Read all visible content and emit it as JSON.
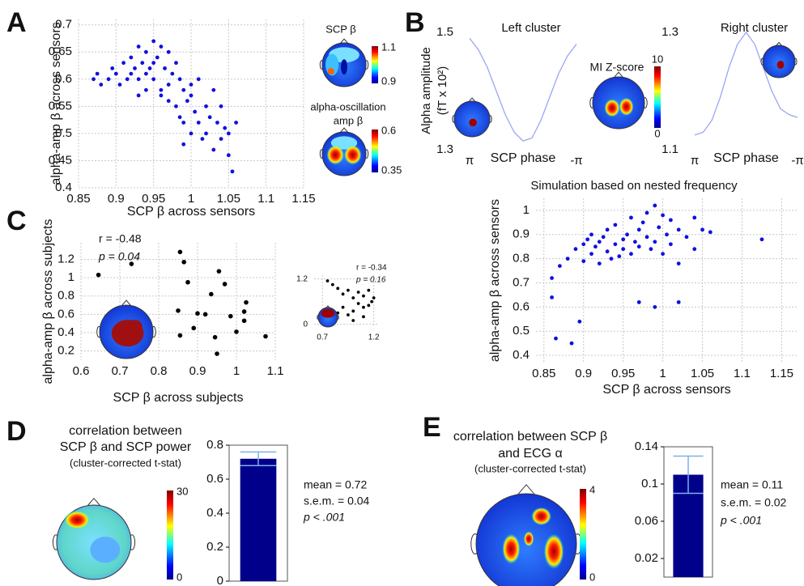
{
  "chart_data": [
    {
      "panel": "A",
      "type": "scatter",
      "xlabel": "SCP β across sensors",
      "ylabel": "alpha-amp β across sensors",
      "color": "#1010e0",
      "grid": true,
      "xlim": [
        0.85,
        1.15
      ],
      "xticks": [
        0.85,
        0.9,
        0.95,
        1,
        1.05,
        1.1,
        1.15
      ],
      "ylim": [
        0.4,
        0.71
      ],
      "yticks": [
        0.7,
        0.65,
        0.6,
        0.55,
        0.5,
        0.45,
        0.4
      ],
      "x": [
        0.87,
        0.875,
        0.88,
        0.89,
        0.895,
        0.9,
        0.905,
        0.91,
        0.915,
        0.92,
        0.92,
        0.925,
        0.93,
        0.93,
        0.935,
        0.94,
        0.94,
        0.945,
        0.95,
        0.95,
        0.955,
        0.96,
        0.96,
        0.965,
        0.97,
        0.97,
        0.975,
        0.98,
        0.98,
        0.985,
        0.99,
        0.99,
        0.995,
        1,
        1,
        1.005,
        1.01,
        1.01,
        1.015,
        1.02,
        1.02,
        1.025,
        1.03,
        1.03,
        1.035,
        1.04,
        1.04,
        1.045,
        1.05,
        1.05,
        1.055,
        1.06,
        0.96,
        0.95,
        0.94,
        0.99,
        1,
        0.93,
        0.97,
        0.985
      ],
      "y": [
        0.6,
        0.61,
        0.59,
        0.6,
        0.62,
        0.61,
        0.59,
        0.63,
        0.6,
        0.64,
        0.61,
        0.62,
        0.66,
        0.6,
        0.63,
        0.65,
        0.61,
        0.62,
        0.67,
        0.6,
        0.64,
        0.66,
        0.58,
        0.62,
        0.65,
        0.59,
        0.61,
        0.63,
        0.55,
        0.6,
        0.58,
        0.52,
        0.56,
        0.57,
        0.5,
        0.54,
        0.6,
        0.52,
        0.49,
        0.55,
        0.5,
        0.53,
        0.58,
        0.47,
        0.52,
        0.55,
        0.49,
        0.51,
        0.5,
        0.46,
        0.43,
        0.52,
        0.57,
        0.63,
        0.58,
        0.48,
        0.59,
        0.57,
        0.56,
        0.53
      ],
      "insets": [
        {
          "title_lines": [
            "SCP β"
          ],
          "cbar_ticks": [
            1.1,
            0.9
          ]
        },
        {
          "title_lines": [
            "alpha-oscillation",
            "amp β"
          ],
          "cbar_ticks": [
            0.6,
            0.35
          ]
        }
      ]
    },
    {
      "panel": "B",
      "type": "line",
      "title": "Left cluster",
      "ylabel_lines": [
        "Alpha amplitude",
        "(fT x 10²)"
      ],
      "xlabel": "SCP phase",
      "color": "#9aa6f0",
      "xlim": [
        3.1416,
        -3.1416
      ],
      "xticks": [
        {
          "value": 3.1416,
          "label": "π"
        },
        {
          "value": -3.1416,
          "label": "-π"
        }
      ],
      "ylim": [
        1.3,
        1.5
      ],
      "yticks": [
        1.5,
        1.3
      ],
      "x": [
        3.1416,
        2.618,
        2.0944,
        1.5708,
        1.0472,
        0.5236,
        0,
        -0.5236,
        -1.0472,
        -1.5708,
        -2.0944,
        -2.618,
        -3.1416
      ],
      "values": [
        1.49,
        1.47,
        1.44,
        1.4,
        1.36,
        1.33,
        1.315,
        1.32,
        1.35,
        1.39,
        1.43,
        1.46,
        1.48
      ],
      "insets": [
        {
          "title_lines": [
            "MI Z-score"
          ],
          "cbar_ticks": [
            10,
            0
          ]
        }
      ]
    },
    {
      "type": "line",
      "title": "Right cluster",
      "xlabel": "SCP phase",
      "color": "#9aa6f0",
      "xlim": [
        3.1416,
        -3.1416
      ],
      "xticks": [
        {
          "value": 3.1416,
          "label": "π"
        },
        {
          "value": -3.1416,
          "label": "-π"
        }
      ],
      "ylim": [
        1.1,
        1.3
      ],
      "yticks": [
        1.3,
        1.1
      ],
      "x": [
        3.1416,
        2.618,
        2.0944,
        1.5708,
        1.0472,
        0.5236,
        0,
        -0.5236,
        -1.0472,
        -1.5708,
        -2.0944,
        -2.618,
        -3.1416
      ],
      "values": [
        1.125,
        1.13,
        1.15,
        1.19,
        1.24,
        1.28,
        1.3,
        1.28,
        1.24,
        1.2,
        1.17,
        1.16,
        1.155
      ]
    },
    {
      "type": "scatter",
      "title": "Simulation based on nested frequency",
      "xlabel": "SCP β across sensors",
      "ylabel": "alpha-amp β across sensors",
      "color": "#1010e0",
      "grid": true,
      "xlim": [
        0.84,
        1.17
      ],
      "xticks": [
        0.85,
        0.9,
        0.95,
        1,
        1.05,
        1.1,
        1.15
      ],
      "ylim": [
        0.37,
        1.05
      ],
      "yticks": [
        0.4,
        0.5,
        0.6,
        0.7,
        0.8,
        0.9,
        1
      ],
      "x": [
        0.86,
        0.86,
        0.865,
        0.87,
        0.88,
        0.885,
        0.89,
        0.895,
        0.9,
        0.9,
        0.905,
        0.91,
        0.91,
        0.915,
        0.92,
        0.92,
        0.925,
        0.93,
        0.93,
        0.935,
        0.94,
        0.94,
        0.945,
        0.95,
        0.95,
        0.955,
        0.96,
        0.96,
        0.965,
        0.97,
        0.97,
        0.975,
        0.98,
        0.98,
        0.985,
        0.99,
        0.99,
        0.995,
        1,
        1,
        1.005,
        1.01,
        1.01,
        1.02,
        1.02,
        1.03,
        1.04,
        1.04,
        1.05,
        1.06,
        1.125,
        0.97,
        0.99,
        1.02
      ],
      "y": [
        0.64,
        0.72,
        0.47,
        0.77,
        0.8,
        0.45,
        0.84,
        0.54,
        0.86,
        0.79,
        0.88,
        0.82,
        0.9,
        0.85,
        0.87,
        0.78,
        0.89,
        0.83,
        0.92,
        0.8,
        0.86,
        0.94,
        0.81,
        0.88,
        0.84,
        0.9,
        0.97,
        0.82,
        0.87,
        0.92,
        0.85,
        0.95,
        0.89,
        0.99,
        0.84,
        1.02,
        0.87,
        0.93,
        0.98,
        0.82,
        0.9,
        0.96,
        0.86,
        0.92,
        0.62,
        0.89,
        0.97,
        0.84,
        0.92,
        0.91,
        0.88,
        0.62,
        0.6,
        0.78
      ]
    },
    {
      "panel": "C",
      "type": "scatter",
      "xlabel": "SCP β across subjects",
      "ylabel": "alpha-amp β  across subjects",
      "color": "#000000",
      "grid": true,
      "annotations": [
        "r = -0.48",
        "p = 0.04"
      ],
      "xlim": [
        0.6,
        1.1
      ],
      "xticks": [
        0.6,
        0.7,
        0.8,
        0.9,
        1,
        1.1
      ],
      "ylim": [
        0.1,
        1.38
      ],
      "yticks": [
        0.2,
        0.4,
        0.6,
        0.8,
        1,
        1.2
      ],
      "x": [
        0.645,
        0.73,
        0.855,
        0.865,
        0.875,
        0.85,
        0.855,
        0.89,
        0.9,
        0.92,
        0.935,
        0.945,
        0.95,
        0.955,
        0.97,
        0.985,
        1,
        1.02,
        1.02,
        1.025,
        1.075
      ],
      "y": [
        1.03,
        1.15,
        1.28,
        1.17,
        0.95,
        0.64,
        0.37,
        0.45,
        0.61,
        0.6,
        0.82,
        0.35,
        0.17,
        1.07,
        0.93,
        0.58,
        0.41,
        0.53,
        0.63,
        0.73,
        0.36
      ]
    },
    {
      "type": "scatter",
      "color": "#000000",
      "grid": true,
      "annotations": [
        "r = -0.34",
        "p = 0.16"
      ],
      "xlim": [
        0.62,
        1.25
      ],
      "xticks": [
        0.7,
        1.2
      ],
      "ylim": [
        -0.05,
        1.3
      ],
      "yticks": [
        0,
        1.2
      ],
      "x": [
        0.75,
        0.8,
        0.85,
        0.9,
        0.95,
        1,
        1.05,
        1.1,
        1.15,
        1.18,
        0.9,
        1,
        1.05,
        1.1,
        0.95,
        1.1,
        1.15,
        1.2,
        0.85,
        1
      ],
      "y": [
        1.15,
        1.05,
        0.95,
        0.8,
        0.9,
        0.7,
        0.85,
        0.75,
        0.9,
        0.6,
        0.45,
        0.35,
        0.55,
        0.45,
        0.25,
        0.2,
        0.5,
        0.7,
        0.3,
        0.1
      ]
    },
    {
      "panel": "D",
      "type": "bar",
      "title_lines": [
        "correlation between",
        "SCP β and SCP power"
      ],
      "subtitle": "(cluster-corrected t-stat)",
      "color": "#00008b",
      "categories": [
        null
      ],
      "values": [
        0.72
      ],
      "errors": [
        0.04
      ],
      "ylim": [
        0,
        0.8
      ],
      "yticks": [
        0,
        0.2,
        0.4,
        0.6,
        0.8
      ],
      "annotations": [
        "mean = 0.72",
        "s.e.m. = 0.04",
        "p < .001"
      ],
      "cbar_ticks": [
        30,
        0
      ]
    },
    {
      "panel": "E",
      "type": "bar",
      "title_lines": [
        "correlation between SCP β",
        "and ECG α"
      ],
      "subtitle": "(cluster-corrected t-stat)",
      "color": "#00008b",
      "categories": [
        null
      ],
      "values": [
        0.11
      ],
      "errors": [
        0.02
      ],
      "ylim": [
        0,
        0.14
      ],
      "yticks": [
        0.02,
        0.06,
        0.1,
        0.14
      ],
      "annotations": [
        "mean = 0.11",
        "s.e.m. = 0.02",
        "p < .001"
      ],
      "cbar_ticks": [
        4,
        0
      ]
    }
  ]
}
